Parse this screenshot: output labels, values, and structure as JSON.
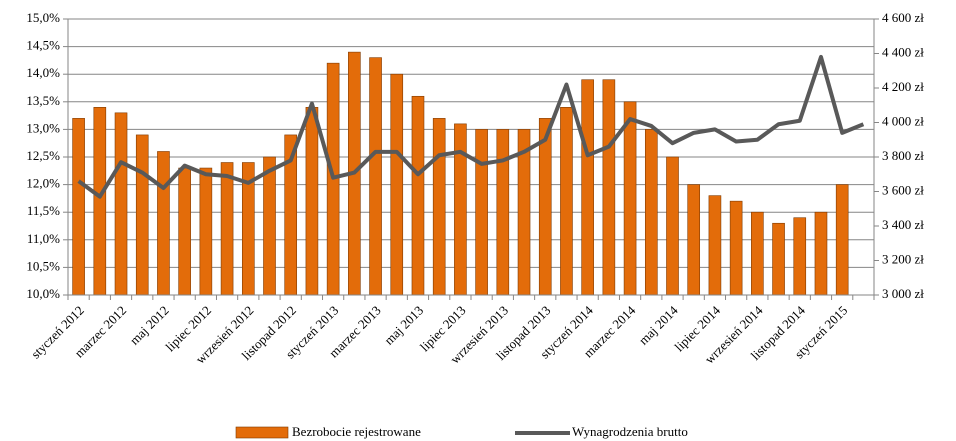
{
  "chart_data": {
    "type": "bar-line",
    "categories": [
      "styczeń 2012",
      null,
      "marzec 2012",
      null,
      "maj 2012",
      null,
      "lipiec 2012",
      null,
      "wrzesień 2012",
      null,
      "listopad 2012",
      null,
      "styczeń 2013",
      null,
      "marzec 2013",
      null,
      "maj 2013",
      null,
      "lipiec 2013",
      null,
      "wrzesień 2013",
      null,
      "listopad 2013",
      null,
      "styczeń 2014",
      null,
      "marzec 2014",
      null,
      "maj 2014",
      null,
      "lipiec 2014",
      null,
      "wrzesień 2014",
      null,
      "listopad 2014",
      null,
      "styczeń 2015",
      null
    ],
    "series": [
      {
        "name": "Bezrobocie rejestrowane",
        "type": "bar",
        "color": "#e36c0a",
        "values": [
          13.2,
          13.4,
          13.3,
          12.9,
          12.6,
          12.3,
          12.3,
          12.4,
          12.4,
          12.5,
          12.9,
          13.4,
          14.2,
          14.4,
          14.3,
          14.0,
          13.6,
          13.2,
          13.1,
          13.0,
          13.0,
          13.0,
          13.2,
          13.4,
          13.9,
          13.9,
          13.5,
          13.0,
          12.5,
          12.0,
          11.8,
          11.7,
          11.5,
          11.3,
          11.4,
          11.5,
          12.0,
          null
        ]
      },
      {
        "name": "Wynagrodzenia brutto",
        "type": "line",
        "axis": "y2",
        "color": "#595959",
        "values": [
          3660,
          3570,
          3770,
          3710,
          3620,
          3750,
          3700,
          3690,
          3650,
          3720,
          3780,
          4110,
          3680,
          3710,
          3830,
          3830,
          3700,
          3810,
          3830,
          3760,
          3780,
          3830,
          3900,
          4220,
          3810,
          3860,
          4020,
          3980,
          3880,
          3940,
          3960,
          3890,
          3900,
          3990,
          4010,
          4380,
          3940,
          3990
        ]
      }
    ],
    "ylim": [
      10,
      15
    ],
    "yticks": [
      {
        "value": 10,
        "label": "10,0%"
      },
      {
        "value": 10.5,
        "label": "10,5%"
      },
      {
        "value": 11,
        "label": "11,0%"
      },
      {
        "value": 11.5,
        "label": "11,5%"
      },
      {
        "value": 12,
        "label": "12,0%"
      },
      {
        "value": 12.5,
        "label": "12,5%"
      },
      {
        "value": 13,
        "label": "13,0%"
      },
      {
        "value": 13.5,
        "label": "13,5%"
      },
      {
        "value": 14,
        "label": "14,0%"
      },
      {
        "value": 14.5,
        "label": "14,5%"
      },
      {
        "value": 15,
        "label": "15,0%"
      }
    ],
    "y2lim": [
      3000,
      4600
    ],
    "y2ticks": [
      {
        "value": 3000,
        "label": "3 000 zł"
      },
      {
        "value": 3200,
        "label": "3 200 zł"
      },
      {
        "value": 3400,
        "label": "3 400 zł"
      },
      {
        "value": 3600,
        "label": "3 600 zł"
      },
      {
        "value": 3800,
        "label": "3 800 zł"
      },
      {
        "value": 4000,
        "label": "4 000 zł"
      },
      {
        "value": 4200,
        "label": "4 200 zł"
      },
      {
        "value": 4400,
        "label": "4 400 zł"
      },
      {
        "value": 4600,
        "label": "4 600 zł"
      }
    ],
    "grid": true,
    "legend": "bottom"
  }
}
